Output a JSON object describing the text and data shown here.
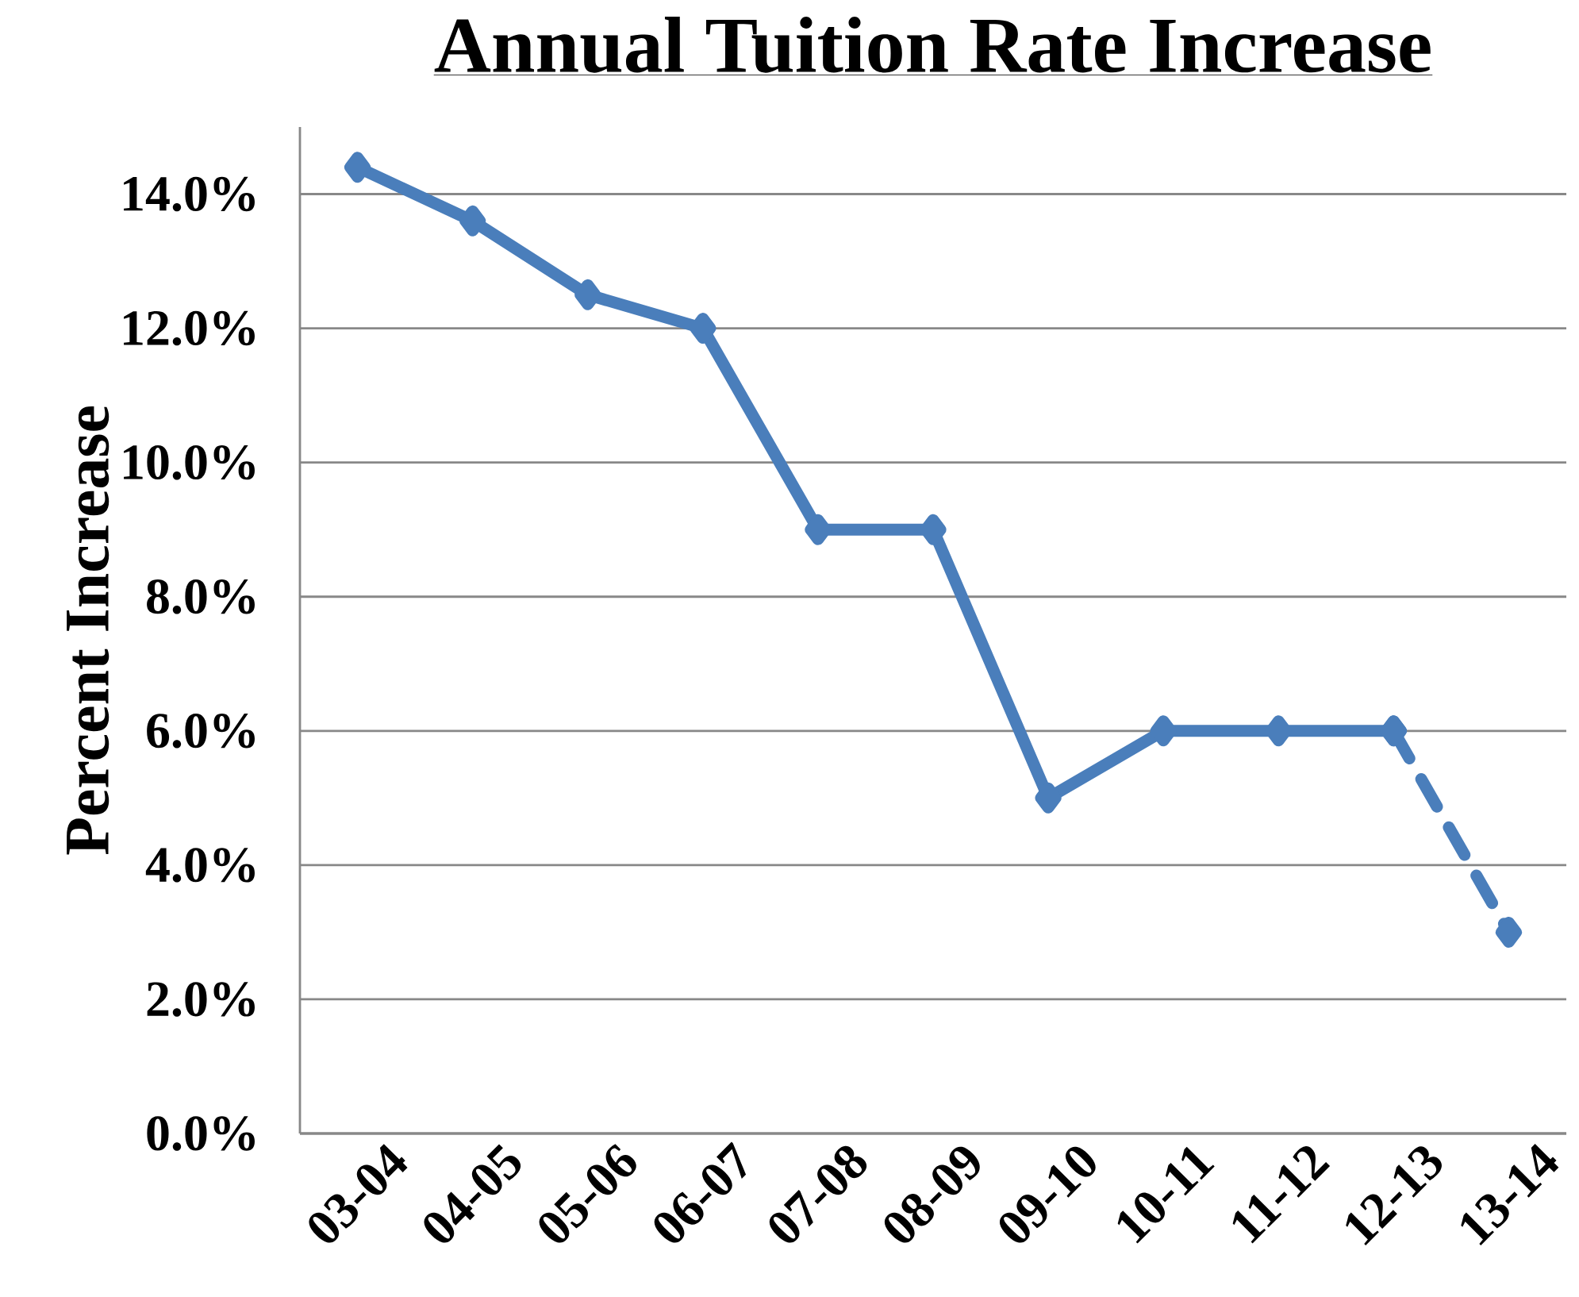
{
  "chart_data": {
    "type": "line",
    "title": "Annual Tuition Rate Increase",
    "ylabel": "Percent Increase",
    "categories": [
      "03-04",
      "04-05",
      "05-06",
      "06-07",
      "07-08",
      "08-09",
      "09-10",
      "10-11",
      "11-12",
      "12-13",
      "13-14"
    ],
    "series": [
      {
        "color": "#4a7ebb",
        "line_style": "solid",
        "values": [
          14.4,
          13.6,
          12.5,
          12.0,
          9.0,
          9.0,
          5.0,
          6.0,
          6.0,
          6.0,
          null
        ]
      },
      {
        "color": "#4a7ebb",
        "line_style": "dashed",
        "values": [
          null,
          null,
          null,
          null,
          null,
          null,
          null,
          null,
          null,
          6.0,
          3.0
        ]
      }
    ],
    "ylim": [
      0,
      15
    ],
    "yticks": [
      {
        "value": 0,
        "label": "0.0%"
      },
      {
        "value": 2,
        "label": "2.0%"
      },
      {
        "value": 4,
        "label": "4.0%"
      },
      {
        "value": 6,
        "label": "6.0%"
      },
      {
        "value": 8,
        "label": "8.0%"
      },
      {
        "value": 10,
        "label": "10.0%"
      },
      {
        "value": 12,
        "label": "12.0%"
      },
      {
        "value": 14,
        "label": "14.0%"
      }
    ],
    "grid": "y",
    "marker": "diamond"
  }
}
